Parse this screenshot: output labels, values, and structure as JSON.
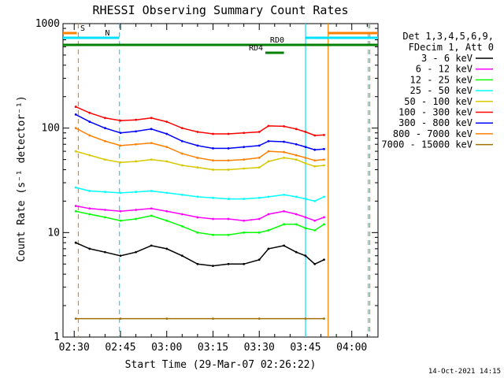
{
  "chart_data": {
    "type": "line",
    "title": "RHESSI Observing Summary Count Rates",
    "xlabel": "Start Time (29-Mar-07 02:26:22)",
    "ylabel": "Count Rate (s⁻¹ detector⁻¹)",
    "ylim": [
      1,
      1000
    ],
    "yscale": "log",
    "xlim": [
      "02:26:22",
      "04:08:30"
    ],
    "x_ticks": [
      "02:30",
      "02:45",
      "03:00",
      "03:15",
      "03:30",
      "03:45",
      "04:00"
    ],
    "y_ticks": [
      "1",
      "10",
      "100",
      "1000"
    ],
    "legend_header": [
      "Det 1,3,4,5,6,9,",
      "FDecim 1, Att 0"
    ],
    "legend_position": "right",
    "timestamp": "14-Oct-2021 14:15",
    "flags": [
      {
        "label": "S",
        "color": "#ff8000",
        "segments": [
          [
            "02:26:22",
            "02:30:50"
          ],
          [
            "03:52:20",
            "04:08:30"
          ]
        ]
      },
      {
        "label": "N",
        "color": "#00e0ff",
        "segments": [
          [
            "02:26:22",
            "02:44:30"
          ],
          [
            "03:45:00",
            "04:08:30"
          ]
        ]
      },
      {
        "label": "RD0",
        "color": "#008000",
        "segments": [
          [
            "02:26:22",
            "04:08:30"
          ]
        ]
      },
      {
        "label": "RD4",
        "color": "#008000",
        "segments": [
          [
            "03:32:00",
            "03:38:00"
          ]
        ]
      }
    ],
    "vertical_markers": [
      {
        "time": "02:31:20",
        "color": "#ff8000",
        "style": "dashed"
      },
      {
        "time": "02:44:40",
        "color": "#00e0ff",
        "style": "dashed"
      },
      {
        "time": "03:45:00",
        "color": "#00e0ff",
        "style": "solid"
      },
      {
        "time": "03:52:20",
        "color": "#ff8000",
        "style": "solid"
      },
      {
        "time": "04:05:20",
        "color": "#00e0ff",
        "style": "dashed"
      },
      {
        "time": "04:05:50",
        "color": "#ff8000",
        "style": "dashed"
      }
    ],
    "series": [
      {
        "name": "3 - 6 keV",
        "color": "#000000",
        "points": [
          [
            "02:30:30",
            8
          ],
          [
            "02:35",
            7
          ],
          [
            "02:40",
            6.5
          ],
          [
            "02:45",
            6
          ],
          [
            "02:50",
            6.5
          ],
          [
            "02:55",
            7.5
          ],
          [
            "03:00",
            7
          ],
          [
            "03:05",
            6
          ],
          [
            "03:10",
            5
          ],
          [
            "03:15",
            4.8
          ],
          [
            "03:20",
            5
          ],
          [
            "03:25",
            5
          ],
          [
            "03:30",
            5.5
          ],
          [
            "03:33",
            7
          ],
          [
            "03:38",
            7.5
          ],
          [
            "03:42",
            6.5
          ],
          [
            "03:45",
            6
          ],
          [
            "03:48",
            5
          ],
          [
            "03:51",
            5.5
          ]
        ]
      },
      {
        "name": "6 - 12 keV",
        "color": "#ff00ff",
        "points": [
          [
            "02:30:30",
            18
          ],
          [
            "02:35",
            17
          ],
          [
            "02:40",
            16.5
          ],
          [
            "02:45",
            16
          ],
          [
            "02:50",
            16.5
          ],
          [
            "02:55",
            17
          ],
          [
            "03:00",
            16
          ],
          [
            "03:05",
            15
          ],
          [
            "03:10",
            14
          ],
          [
            "03:15",
            13.5
          ],
          [
            "03:20",
            13.5
          ],
          [
            "03:25",
            13
          ],
          [
            "03:30",
            13.5
          ],
          [
            "03:33",
            15
          ],
          [
            "03:38",
            16
          ],
          [
            "03:42",
            15
          ],
          [
            "03:45",
            14
          ],
          [
            "03:48",
            13
          ],
          [
            "03:51",
            14
          ]
        ]
      },
      {
        "name": "12 - 25 keV",
        "color": "#00ff00",
        "points": [
          [
            "02:30:30",
            16
          ],
          [
            "02:35",
            15
          ],
          [
            "02:40",
            14
          ],
          [
            "02:45",
            13
          ],
          [
            "02:50",
            13.5
          ],
          [
            "02:55",
            14.5
          ],
          [
            "03:00",
            13
          ],
          [
            "03:05",
            11.5
          ],
          [
            "03:10",
            10
          ],
          [
            "03:15",
            9.5
          ],
          [
            "03:20",
            9.5
          ],
          [
            "03:25",
            10
          ],
          [
            "03:30",
            10
          ],
          [
            "03:33",
            10.5
          ],
          [
            "03:38",
            12
          ],
          [
            "03:42",
            12
          ],
          [
            "03:45",
            11
          ],
          [
            "03:48",
            10.5
          ],
          [
            "03:51",
            12
          ]
        ]
      },
      {
        "name": "25 - 50 keV",
        "color": "#00ffff",
        "points": [
          [
            "02:30:30",
            27
          ],
          [
            "02:35",
            25
          ],
          [
            "02:40",
            24.5
          ],
          [
            "02:45",
            24
          ],
          [
            "02:50",
            24.5
          ],
          [
            "02:55",
            25
          ],
          [
            "03:00",
            24
          ],
          [
            "03:05",
            23
          ],
          [
            "03:10",
            22
          ],
          [
            "03:15",
            21.5
          ],
          [
            "03:20",
            21
          ],
          [
            "03:25",
            21
          ],
          [
            "03:30",
            21.5
          ],
          [
            "03:33",
            22
          ],
          [
            "03:38",
            23
          ],
          [
            "03:42",
            22
          ],
          [
            "03:45",
            21
          ],
          [
            "03:48",
            20
          ],
          [
            "03:51",
            22
          ]
        ]
      },
      {
        "name": "50 - 100 keV",
        "color": "#d8c800",
        "points": [
          [
            "02:30:30",
            60
          ],
          [
            "02:35",
            55
          ],
          [
            "02:40",
            50
          ],
          [
            "02:45",
            47
          ],
          [
            "02:50",
            48
          ],
          [
            "02:55",
            50
          ],
          [
            "03:00",
            48
          ],
          [
            "03:05",
            44
          ],
          [
            "03:10",
            42
          ],
          [
            "03:15",
            40
          ],
          [
            "03:20",
            40
          ],
          [
            "03:25",
            41
          ],
          [
            "03:30",
            42
          ],
          [
            "03:33",
            48
          ],
          [
            "03:38",
            52
          ],
          [
            "03:42",
            50
          ],
          [
            "03:45",
            46
          ],
          [
            "03:48",
            43
          ],
          [
            "03:51",
            44
          ]
        ]
      },
      {
        "name": "100 - 300 keV",
        "color": "#ff0000",
        "points": [
          [
            "02:30:30",
            160
          ],
          [
            "02:35",
            140
          ],
          [
            "02:40",
            125
          ],
          [
            "02:45",
            118
          ],
          [
            "02:50",
            120
          ],
          [
            "02:55",
            125
          ],
          [
            "03:00",
            115
          ],
          [
            "03:05",
            100
          ],
          [
            "03:10",
            92
          ],
          [
            "03:15",
            88
          ],
          [
            "03:20",
            88
          ],
          [
            "03:25",
            90
          ],
          [
            "03:30",
            92
          ],
          [
            "03:33",
            105
          ],
          [
            "03:38",
            104
          ],
          [
            "03:42",
            98
          ],
          [
            "03:45",
            92
          ],
          [
            "03:48",
            85
          ],
          [
            "03:51",
            86
          ]
        ]
      },
      {
        "name": "300 - 800 keV",
        "color": "#0000ff",
        "points": [
          [
            "02:30:30",
            135
          ],
          [
            "02:35",
            115
          ],
          [
            "02:40",
            100
          ],
          [
            "02:45",
            90
          ],
          [
            "02:50",
            93
          ],
          [
            "02:55",
            98
          ],
          [
            "03:00",
            88
          ],
          [
            "03:05",
            75
          ],
          [
            "03:10",
            68
          ],
          [
            "03:15",
            64
          ],
          [
            "03:20",
            64
          ],
          [
            "03:25",
            66
          ],
          [
            "03:30",
            68
          ],
          [
            "03:33",
            75
          ],
          [
            "03:38",
            74
          ],
          [
            "03:42",
            70
          ],
          [
            "03:45",
            66
          ],
          [
            "03:48",
            62
          ],
          [
            "03:51",
            63
          ]
        ]
      },
      {
        "name": "800 - 7000 keV",
        "color": "#ff8000",
        "points": [
          [
            "02:30:30",
            100
          ],
          [
            "02:35",
            85
          ],
          [
            "02:40",
            75
          ],
          [
            "02:45",
            68
          ],
          [
            "02:50",
            70
          ],
          [
            "02:55",
            72
          ],
          [
            "03:00",
            66
          ],
          [
            "03:05",
            57
          ],
          [
            "03:10",
            52
          ],
          [
            "03:15",
            49
          ],
          [
            "03:20",
            49
          ],
          [
            "03:25",
            50
          ],
          [
            "03:30",
            52
          ],
          [
            "03:33",
            60
          ],
          [
            "03:38",
            59
          ],
          [
            "03:42",
            55
          ],
          [
            "03:45",
            52
          ],
          [
            "03:48",
            49
          ],
          [
            "03:51",
            50
          ]
        ]
      },
      {
        "name": "7000 - 15000 keV",
        "color": "#a07000",
        "points": [
          [
            "02:30:30",
            1.5
          ],
          [
            "02:45",
            1.5
          ],
          [
            "03:00",
            1.5
          ],
          [
            "03:15",
            1.5
          ],
          [
            "03:30",
            1.5
          ],
          [
            "03:45",
            1.5
          ],
          [
            "03:51",
            1.5
          ]
        ]
      }
    ]
  }
}
